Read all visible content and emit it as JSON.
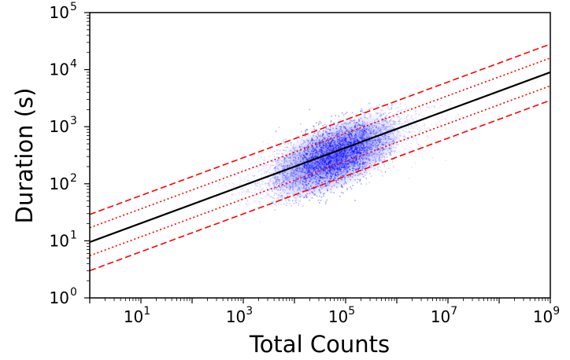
{
  "chart_data": {
    "type": "scatter",
    "title": "",
    "xlabel": "Total Counts",
    "ylabel": "Duration (s)",
    "xscale": "log",
    "yscale": "log",
    "xlim": [
      1,
      1000000000
    ],
    "ylim": [
      1,
      100000
    ],
    "x_tick_labels": [
      {
        "value": 10,
        "base": "10",
        "exp": "1"
      },
      {
        "value": 1000,
        "base": "10",
        "exp": "3"
      },
      {
        "value": 100000,
        "base": "10",
        "exp": "5"
      },
      {
        "value": 10000000,
        "base": "10",
        "exp": "7"
      },
      {
        "value": 1000000000,
        "base": "10",
        "exp": "9"
      }
    ],
    "y_tick_labels": [
      {
        "value": 1,
        "base": "10",
        "exp": "0"
      },
      {
        "value": 10,
        "base": "10",
        "exp": "1"
      },
      {
        "value": 100,
        "base": "10",
        "exp": "2"
      },
      {
        "value": 1000,
        "base": "10",
        "exp": "3"
      },
      {
        "value": 10000,
        "base": "10",
        "exp": "4"
      },
      {
        "value": 100000,
        "base": "10",
        "exp": "5"
      }
    ],
    "grid": false,
    "legend": "none",
    "point_cloud": {
      "color": "#0000ff",
      "center_x": 60000,
      "center_y": 300,
      "x_range": [
        300,
        100000000
      ],
      "y_range": [
        7,
        3000
      ],
      "lower_duration_cutoff": 40
    },
    "lines": [
      {
        "style": "solid",
        "color": "#000000",
        "points": [
          [
            1,
            9.5
          ],
          [
            1000000000,
            9000
          ]
        ]
      },
      {
        "style": "dashed",
        "color": "#ff0000",
        "points": [
          [
            1,
            29
          ],
          [
            1000000000,
            28000
          ]
        ]
      },
      {
        "style": "dashed",
        "color": "#ff0000",
        "points": [
          [
            1,
            3
          ],
          [
            1000000000,
            2900
          ]
        ]
      },
      {
        "style": "dotted",
        "color": "#ff0000",
        "points": [
          [
            1,
            17
          ],
          [
            1000000000,
            16000
          ]
        ]
      },
      {
        "style": "dotted",
        "color": "#ff0000",
        "points": [
          [
            1,
            5.5
          ],
          [
            1000000000,
            5200
          ]
        ]
      }
    ]
  }
}
